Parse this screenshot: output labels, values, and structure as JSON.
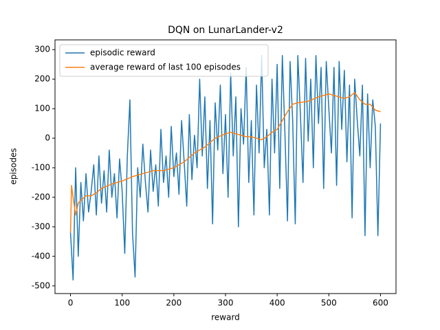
{
  "chart_data": {
    "type": "line",
    "title": "DQN on LunarLander-v2",
    "x_label": "reward",
    "y_label": "episodes",
    "xlim": [
      -30,
      630
    ],
    "ylim": [
      -526,
      333
    ],
    "xticks": [
      0,
      100,
      200,
      300,
      400,
      500,
      600
    ],
    "yticks": [
      -500,
      -400,
      -300,
      -200,
      -100,
      0,
      100,
      200,
      300
    ],
    "grid": false,
    "legend": "upper-left",
    "series": [
      {
        "name": "episodic reward",
        "color": "#1f77b4",
        "x": [
          0,
          5,
          10,
          15,
          20,
          25,
          30,
          35,
          40,
          45,
          50,
          55,
          60,
          65,
          70,
          75,
          80,
          85,
          90,
          95,
          100,
          105,
          110,
          115,
          120,
          125,
          130,
          135,
          140,
          145,
          150,
          155,
          160,
          165,
          170,
          175,
          180,
          185,
          190,
          195,
          200,
          205,
          210,
          215,
          220,
          225,
          230,
          235,
          240,
          245,
          250,
          255,
          260,
          265,
          270,
          275,
          280,
          285,
          290,
          295,
          300,
          305,
          310,
          315,
          320,
          325,
          330,
          335,
          340,
          345,
          350,
          355,
          360,
          365,
          370,
          375,
          380,
          385,
          390,
          395,
          400,
          405,
          410,
          415,
          420,
          425,
          430,
          435,
          440,
          445,
          450,
          455,
          460,
          465,
          470,
          475,
          480,
          485,
          490,
          495,
          500,
          505,
          510,
          515,
          520,
          525,
          530,
          535,
          540,
          545,
          550,
          555,
          560,
          565,
          570,
          575,
          580,
          585,
          590,
          595,
          600
        ],
        "values": [
          -320,
          -480,
          -100,
          -400,
          -150,
          -280,
          -120,
          -250,
          -180,
          -90,
          -260,
          -60,
          -220,
          -110,
          -250,
          -40,
          -200,
          -120,
          -270,
          -70,
          -180,
          -390,
          -60,
          130,
          -320,
          -470,
          -100,
          -200,
          -20,
          -150,
          -250,
          -40,
          -180,
          -90,
          -230,
          30,
          -150,
          -60,
          -200,
          40,
          -130,
          -50,
          -190,
          60,
          -80,
          -230,
          80,
          -140,
          10,
          -100,
          200,
          -60,
          140,
          -170,
          60,
          -290,
          120,
          -40,
          180,
          -120,
          80,
          -200,
          220,
          -60,
          140,
          -300,
          100,
          -20,
          240,
          -150,
          60,
          -260,
          180,
          -50,
          280,
          -100,
          30,
          -260,
          200,
          -50,
          250,
          -170,
          280,
          20,
          -280,
          260,
          60,
          -290,
          280,
          80,
          -150,
          270,
          -10,
          200,
          -100,
          280,
          50,
          240,
          -170,
          260,
          100,
          -50,
          240,
          -160,
          260,
          30,
          230,
          -80,
          180,
          -270,
          200,
          60,
          -60,
          180,
          -330,
          150,
          -100,
          130,
          40,
          -330,
          50
        ]
      },
      {
        "name": "average reward of last 100 episodes",
        "color": "#ff7f0e",
        "x": [
          0,
          2,
          5,
          10,
          15,
          20,
          30,
          40,
          50,
          60,
          80,
          100,
          120,
          140,
          160,
          180,
          200,
          220,
          240,
          260,
          280,
          300,
          310,
          320,
          340,
          350,
          360,
          370,
          380,
          390,
          400,
          410,
          420,
          430,
          440,
          460,
          480,
          500,
          520,
          530,
          540,
          550,
          560,
          570,
          580,
          590,
          600
        ],
        "values": [
          -320,
          -160,
          -200,
          -260,
          -220,
          -210,
          -195,
          -195,
          -185,
          -170,
          -155,
          -145,
          -130,
          -120,
          -110,
          -110,
          -100,
          -80,
          -50,
          -30,
          0,
          15,
          20,
          15,
          5,
          5,
          0,
          -5,
          5,
          20,
          30,
          60,
          90,
          115,
          120,
          125,
          140,
          150,
          140,
          135,
          140,
          155,
          130,
          115,
          115,
          95,
          90
        ]
      }
    ]
  }
}
